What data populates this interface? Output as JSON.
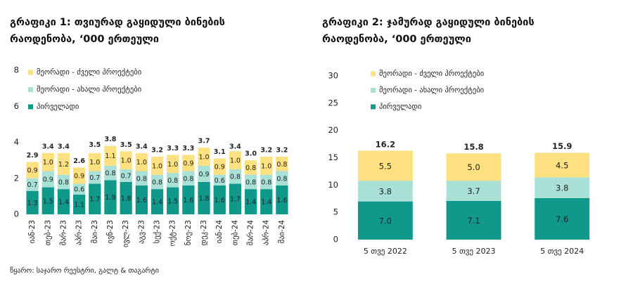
{
  "chart_data": [
    {
      "type": "stacked_bar",
      "title": "გრაფიკი 1: თვიურად გაყიდული ბინების რაოდენობა, ‘000 ერთეული",
      "categories": [
        "იან-23",
        "თებ-23",
        "მარ-23",
        "აპრ-23",
        "მაი-23",
        "ივნ-23",
        "ივლ-23",
        "აგვ-23",
        "სექ-23",
        "ოქტ-23",
        "ნოე-23",
        "დეკ-23",
        "იან-24",
        "თებ-24",
        "მარ-24",
        "აპრ-24",
        "მაი-24"
      ],
      "series": [
        {
          "name": "პირველადი",
          "color": "#10998a",
          "values": [
            1.3,
            1.5,
            1.4,
            1.1,
            1.7,
            1.9,
            1.8,
            1.6,
            1.4,
            1.5,
            1.6,
            1.8,
            1.6,
            1.7,
            1.4,
            1.4,
            1.6
          ],
          "value_labels": [
            "1.3",
            "1.5",
            "1.4",
            "1.1",
            "1.7",
            "1.9",
            "1.8",
            "1.6",
            "1.4",
            "1.5",
            "1.6",
            "1.8",
            "1.6",
            "1.7",
            "1.4",
            "1.4",
            "1.6"
          ]
        },
        {
          "name": "მეორადი - ახალი პროექტები",
          "color": "#a9e1d7",
          "values": [
            0.7,
            0.9,
            0.8,
            0.6,
            0.7,
            0.8,
            0.7,
            0.8,
            0.8,
            0.8,
            0.8,
            0.9,
            0.6,
            0.8,
            0.8,
            0.8,
            0.8
          ],
          "value_labels": [
            "0.7",
            "0.9",
            "0.8",
            "0.6",
            "0.7",
            "0.8",
            "0.7",
            "0.8",
            "0.8",
            "0.8",
            "0.8",
            "0.9",
            "0.6",
            "0.8",
            "0.8",
            "0.8",
            "0.8"
          ]
        },
        {
          "name": "მეორადი - ძველი პროექტები",
          "color": "#fde07f",
          "values": [
            0.9,
            1.0,
            1.2,
            0.9,
            1.0,
            1.1,
            1.0,
            1.0,
            1.0,
            1.0,
            0.9,
            1.0,
            0.9,
            1.0,
            0.8,
            1.0,
            0.8
          ],
          "value_labels": [
            "0.9",
            "1.0",
            "1.2",
            "0.9",
            "1.0",
            "1.1",
            "1.0",
            "1.0",
            "1.0",
            "1.0",
            "0.9",
            "1.0",
            "0.9",
            "1.0",
            "0.8",
            "1.0",
            "0.8"
          ]
        }
      ],
      "totals": {
        "values": [
          2.9,
          3.4,
          3.4,
          2.6,
          3.5,
          3.8,
          3.5,
          3.4,
          3.2,
          3.3,
          3.3,
          3.7,
          3.1,
          3.4,
          3.0,
          3.2,
          3.2
        ],
        "value_labels": [
          "2.9",
          "3.4",
          "3.4",
          "2.6",
          "3.5",
          "3.8",
          "3.5",
          "3.4",
          "3.2",
          "3.3",
          "3.3",
          "3.7",
          "3.1",
          "3.4",
          "3.0",
          "3.2",
          "3.2"
        ]
      },
      "ylim": [
        0,
        8
      ],
      "yticks": [
        0,
        2,
        4,
        6,
        8
      ],
      "legend": "upper left"
    },
    {
      "type": "stacked_bar",
      "title": "გრაფიკი 2: ჯამურად გაყიდული ბინების რაოდენობა, ‘000 ერთეული",
      "categories": [
        "5 თვე 2022",
        "5 თვე 2023",
        "5 თვე 2024"
      ],
      "series": [
        {
          "name": "პირველადი",
          "color": "#10998a",
          "values": [
            7.0,
            7.1,
            7.6
          ],
          "value_labels": [
            "7.0",
            "7.1",
            "7.6"
          ]
        },
        {
          "name": "მეორადი - ახალი პროექტები",
          "color": "#a9e1d7",
          "values": [
            3.8,
            3.7,
            3.8
          ],
          "value_labels": [
            "3.8",
            "3.7",
            "3.8"
          ]
        },
        {
          "name": "მეორადი - ძველი პროექტები",
          "color": "#fde07f",
          "values": [
            5.5,
            5.0,
            4.5
          ],
          "value_labels": [
            "5.5",
            "5.0",
            "4.5"
          ]
        }
      ],
      "totals": {
        "values": [
          16.2,
          15.8,
          15.9
        ],
        "value_labels": [
          "16.2",
          "15.8",
          "15.9"
        ]
      },
      "ylim": [
        0,
        30
      ],
      "yticks": [
        0,
        5,
        10,
        15,
        20,
        25,
        30
      ],
      "legend": "upper left"
    }
  ],
  "source": "წყარო: საჯარო რეესტრი, გალტ & თაგარტი"
}
